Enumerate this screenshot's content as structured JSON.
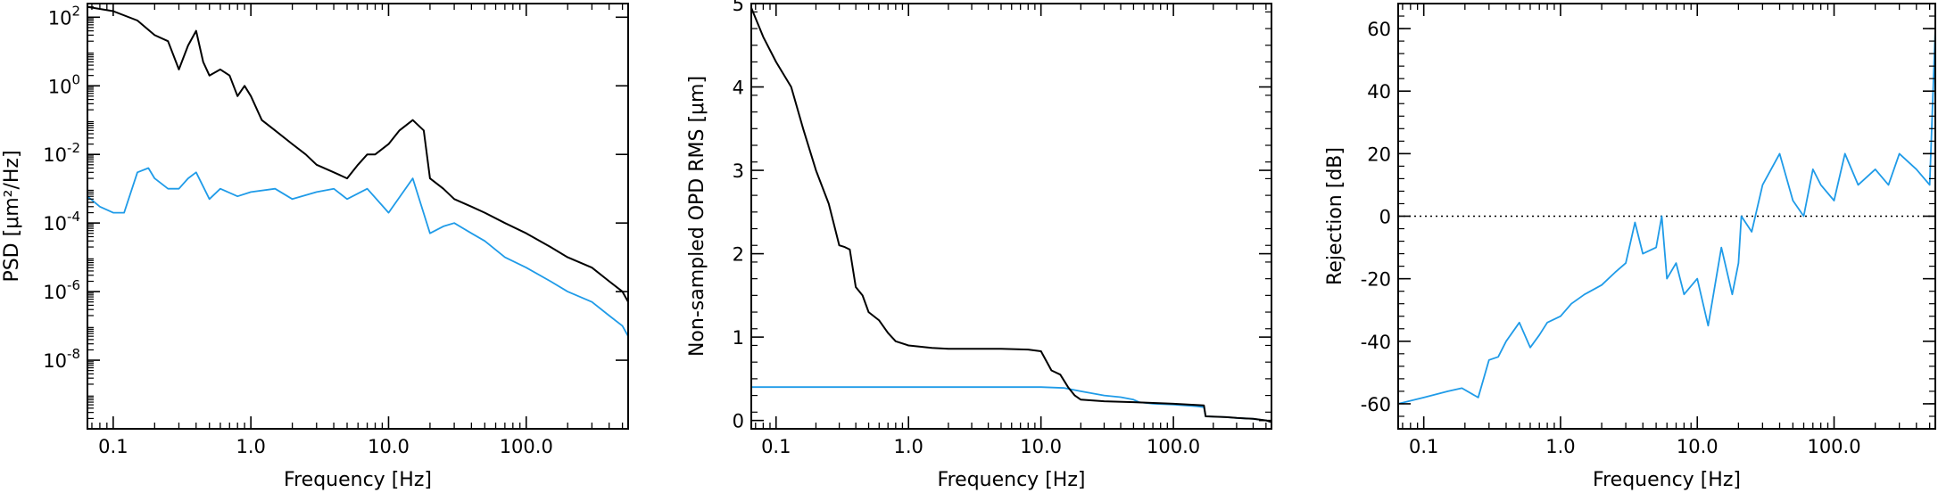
{
  "colors": {
    "black_series": "#000000",
    "blue_series": "#1f9be8",
    "reference_line": "#000000"
  },
  "chart_data": [
    {
      "type": "line",
      "xlabel": "Frequency [Hz]",
      "ylabel": "PSD [μm²/Hz]",
      "x_scale": "log",
      "y_scale": "log",
      "xlim": [
        0.065,
        550
      ],
      "ylim": [
        1e-10,
        250
      ],
      "x_ticks": [
        0.1,
        1,
        10,
        100
      ],
      "x_tick_labels": [
        "0.1",
        "1.0",
        "10.0",
        "100.0"
      ],
      "y_ticks": [
        1e-08,
        1e-06,
        0.0001,
        0.01,
        1,
        100
      ],
      "y_tick_labels": [
        {
          "base": "10",
          "exp": "-8"
        },
        {
          "base": "10",
          "exp": "-6"
        },
        {
          "base": "10",
          "exp": "-4"
        },
        {
          "base": "10",
          "exp": "-2"
        },
        {
          "base": "10",
          "exp": "0"
        },
        {
          "base": "10",
          "exp": "2"
        }
      ],
      "series": [
        {
          "color": "black",
          "x": [
            0.065,
            0.1,
            0.15,
            0.2,
            0.25,
            0.3,
            0.35,
            0.4,
            0.45,
            0.5,
            0.6,
            0.7,
            0.8,
            0.9,
            1.0,
            1.2,
            1.5,
            2.0,
            2.5,
            3.0,
            4.0,
            5.0,
            6.0,
            7.0,
            8.0,
            10,
            12,
            15,
            18,
            20,
            25,
            30,
            40,
            50,
            70,
            100,
            150,
            200,
            300,
            400,
            500,
            550
          ],
          "y": [
            200,
            150,
            80,
            30,
            20,
            3,
            15,
            40,
            5,
            2,
            3,
            2,
            0.5,
            1,
            0.5,
            0.1,
            0.05,
            0.02,
            0.01,
            0.005,
            0.003,
            0.002,
            0.005,
            0.01,
            0.01,
            0.02,
            0.05,
            0.1,
            0.05,
            0.002,
            0.001,
            0.0005,
            0.0003,
            0.0002,
            0.0001,
            5e-05,
            2e-05,
            1e-05,
            5e-06,
            2e-06,
            1e-06,
            5e-07
          ]
        },
        {
          "color": "blue",
          "x": [
            0.065,
            0.08,
            0.1,
            0.12,
            0.15,
            0.18,
            0.2,
            0.25,
            0.3,
            0.35,
            0.4,
            0.5,
            0.6,
            0.8,
            1.0,
            1.5,
            2.0,
            3.0,
            4.0,
            5.0,
            7.0,
            10,
            15,
            20,
            25,
            30,
            40,
            50,
            70,
            100,
            150,
            200,
            300,
            400,
            500,
            550
          ],
          "y": [
            0.0006,
            0.0003,
            0.0002,
            0.0002,
            0.003,
            0.004,
            0.002,
            0.001,
            0.001,
            0.002,
            0.003,
            0.0005,
            0.001,
            0.0006,
            0.0008,
            0.001,
            0.0005,
            0.0008,
            0.001,
            0.0005,
            0.001,
            0.0002,
            0.002,
            5e-05,
            8e-05,
            0.0001,
            5e-05,
            3e-05,
            1e-05,
            5e-06,
            2e-06,
            1e-06,
            5e-07,
            2e-07,
            1e-07,
            5e-08
          ]
        }
      ]
    },
    {
      "type": "line",
      "xlabel": "Frequency [Hz]",
      "ylabel": "Non-sampled OPD RMS [μm]",
      "x_scale": "log",
      "y_scale": "linear",
      "xlim": [
        0.065,
        550
      ],
      "ylim": [
        -0.1,
        5.0
      ],
      "x_ticks": [
        0.1,
        1,
        10,
        100
      ],
      "x_tick_labels": [
        "0.1",
        "1.0",
        "10.0",
        "100.0"
      ],
      "y_ticks": [
        0,
        1,
        2,
        3,
        4,
        5
      ],
      "y_tick_labels": [
        "0",
        "1",
        "2",
        "3",
        "4",
        "5"
      ],
      "series": [
        {
          "color": "black",
          "x": [
            0.065,
            0.08,
            0.1,
            0.13,
            0.16,
            0.2,
            0.25,
            0.3,
            0.33,
            0.36,
            0.4,
            0.45,
            0.5,
            0.6,
            0.7,
            0.8,
            1.0,
            1.5,
            2,
            3,
            5,
            8,
            10,
            12,
            14,
            16,
            18,
            20,
            30,
            50,
            100,
            170,
            175,
            250,
            300,
            400,
            500,
            550
          ],
          "y": [
            4.95,
            4.6,
            4.3,
            4.0,
            3.5,
            3.0,
            2.6,
            2.1,
            2.08,
            2.05,
            1.6,
            1.5,
            1.3,
            1.2,
            1.05,
            0.95,
            0.9,
            0.87,
            0.86,
            0.86,
            0.86,
            0.85,
            0.83,
            0.6,
            0.55,
            0.4,
            0.3,
            0.25,
            0.23,
            0.22,
            0.2,
            0.18,
            0.05,
            0.04,
            0.03,
            0.02,
            0.0,
            -0.02
          ]
        },
        {
          "color": "blue",
          "x": [
            0.065,
            1,
            10,
            15,
            20,
            30,
            40,
            50,
            55,
            70,
            100,
            150,
            170,
            175,
            250,
            300,
            400,
            500,
            550
          ],
          "y": [
            0.4,
            0.4,
            0.4,
            0.39,
            0.35,
            0.3,
            0.28,
            0.25,
            0.22,
            0.2,
            0.19,
            0.17,
            0.16,
            0.05,
            0.04,
            0.03,
            0.02,
            0.0,
            -0.02
          ]
        }
      ]
    },
    {
      "type": "line",
      "xlabel": "Frequency [Hz]",
      "ylabel": "Rejection [dB]",
      "x_scale": "log",
      "y_scale": "linear",
      "xlim": [
        0.065,
        550
      ],
      "ylim": [
        -68,
        68
      ],
      "x_ticks": [
        0.1,
        1,
        10,
        100
      ],
      "x_tick_labels": [
        "0.1",
        "1.0",
        "10.0",
        "100.0"
      ],
      "y_ticks": [
        -60,
        -40,
        -20,
        0,
        20,
        40,
        60
      ],
      "y_tick_labels": [
        "-60",
        "-40",
        "-20",
        "0",
        "20",
        "40",
        "60"
      ],
      "reference_line": {
        "y": 0,
        "style": "dotted"
      },
      "series": [
        {
          "color": "blue",
          "x": [
            0.065,
            0.1,
            0.15,
            0.19,
            0.25,
            0.3,
            0.35,
            0.4,
            0.5,
            0.6,
            0.7,
            0.8,
            1.0,
            1.2,
            1.5,
            2.0,
            2.5,
            3.0,
            3.5,
            4.0,
            5.0,
            5.5,
            6.0,
            7.0,
            8.0,
            10,
            12,
            15,
            18,
            20,
            21,
            25,
            30,
            40,
            50,
            60,
            70,
            80,
            100,
            120,
            150,
            200,
            250,
            300,
            400,
            500,
            550
          ],
          "y": [
            -60,
            -58,
            -56,
            -55,
            -58,
            -46,
            -45,
            -40,
            -34,
            -42,
            -38,
            -34,
            -32,
            -28,
            -25,
            -22,
            -18,
            -15,
            -2,
            -12,
            -10,
            0,
            -20,
            -15,
            -25,
            -20,
            -35,
            -10,
            -25,
            -15,
            0,
            -5,
            10,
            20,
            5,
            0,
            15,
            10,
            5,
            20,
            10,
            15,
            10,
            20,
            15,
            10,
            60
          ]
        }
      ]
    }
  ]
}
